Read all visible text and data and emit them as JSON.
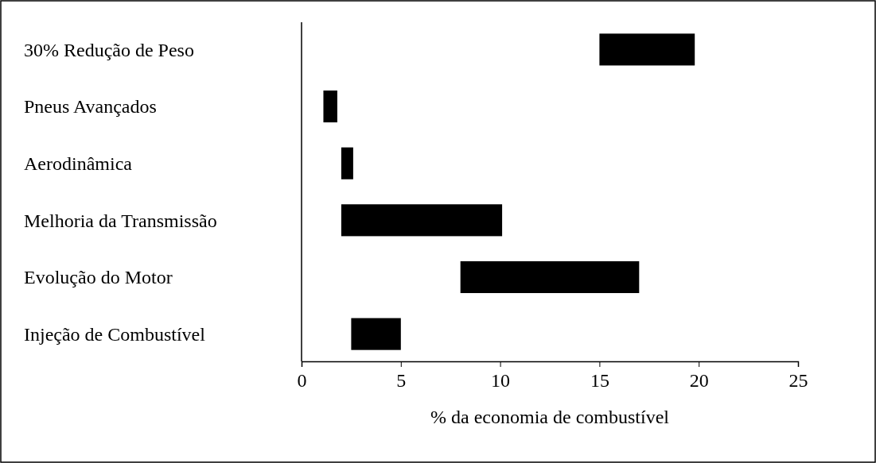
{
  "chart_data": {
    "type": "bar",
    "orientation": "horizontal",
    "xlabel": "% da economia de combustível",
    "categories": [
      "30% Redução de Peso",
      "Pneus Avançados",
      "Aerodinâmica",
      "Melhoria da Transmissão",
      "Evolução do Motor",
      "Injeção de Combustível"
    ],
    "base": [
      15,
      1.1,
      2,
      2,
      8,
      2.5
    ],
    "values": [
      4.8,
      0.7,
      0.6,
      8.1,
      9,
      2.5
    ],
    "color": "#000000",
    "xlim": [
      0,
      25
    ],
    "xticks": [
      0,
      5,
      10,
      15,
      20,
      25
    ],
    "grid": false
  }
}
